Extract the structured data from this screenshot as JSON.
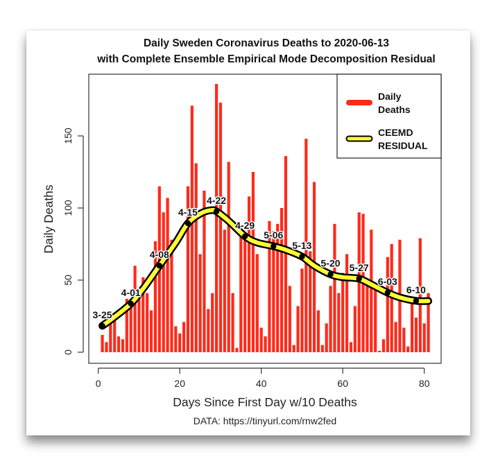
{
  "chart_data": {
    "type": "bar",
    "title": "Daily Sweden Coronavirus Deaths to 2020-06-13",
    "subtitle": "with Complete Ensemble Empirical Mode Decomposition Residual",
    "xlabel": "Days Since First Day w/10 Deaths",
    "ylabel": "Daily Deaths",
    "note": "DATA: https://tinyurl.com/rnw2fed",
    "xlim": [
      -1,
      84
    ],
    "ylim": [
      0,
      190
    ],
    "xticks": [
      0,
      20,
      40,
      60,
      80
    ],
    "xtick_labels": [
      "0",
      "20",
      "40",
      "60",
      "80"
    ],
    "yticks": [
      0,
      50,
      100,
      150
    ],
    "ytick_labels": [
      "0",
      "50",
      "100",
      "150"
    ],
    "grid": false,
    "legend_position": "top-right",
    "series": [
      {
        "name": "Daily Deaths",
        "legend_label": [
          "Daily",
          "Deaths"
        ],
        "kind": "bar",
        "color": "#ff2a1a",
        "x": [
          1,
          2,
          3,
          4,
          5,
          6,
          7,
          8,
          9,
          10,
          11,
          12,
          13,
          14,
          15,
          16,
          17,
          18,
          19,
          20,
          21,
          22,
          23,
          24,
          25,
          26,
          27,
          28,
          29,
          30,
          31,
          32,
          33,
          34,
          35,
          36,
          37,
          38,
          39,
          40,
          41,
          42,
          43,
          44,
          45,
          46,
          47,
          48,
          49,
          50,
          51,
          52,
          53,
          54,
          55,
          56,
          57,
          58,
          59,
          60,
          61,
          62,
          63,
          64,
          65,
          66,
          67,
          68,
          69,
          70,
          71,
          72,
          73,
          74,
          75,
          76,
          77,
          78,
          79,
          80,
          81
        ],
        "values": [
          12,
          7,
          20,
          22,
          11,
          9,
          37,
          36,
          60,
          41,
          52,
          41,
          29,
          77,
          115,
          97,
          107,
          78,
          18,
          13,
          21,
          115,
          171,
          131,
          68,
          112,
          30,
          41,
          186,
          173,
          85,
          132,
          41,
          3,
          80,
          80,
          108,
          125,
          68,
          17,
          11,
          91,
          84,
          89,
          100,
          136,
          46,
          5,
          32,
          58,
          148,
          70,
          118,
          29,
          5,
          20,
          46,
          89,
          41,
          55,
          68,
          7,
          32,
          97,
          96,
          48,
          85,
          45,
          1,
          9,
          66,
          75,
          21,
          78,
          17,
          4,
          35,
          24,
          79,
          20,
          41
        ]
      },
      {
        "name": "CEEMD Residual",
        "legend_label": [
          "CEEMD",
          "RESIDUAL"
        ],
        "kind": "line",
        "color": "#ffff33",
        "outline_color": "#000000",
        "x": [
          1,
          4,
          8,
          11,
          15,
          19,
          22,
          25,
          27.5,
          29,
          32,
          36,
          39,
          43,
          46,
          50,
          53,
          57,
          60,
          64,
          67,
          71,
          74,
          78,
          81
        ],
        "values": [
          18.3,
          24.5,
          33.7,
          44,
          60,
          76,
          89.4,
          96,
          98.4,
          97.6,
          91,
          80.4,
          76,
          73.5,
          71,
          66.3,
          60,
          54,
          52,
          51,
          47,
          41.3,
          38,
          35.6,
          35.5
        ]
      }
    ],
    "annotations": [
      {
        "label": "3-25",
        "x": 1,
        "y": 18.3
      },
      {
        "label": "4-01",
        "x": 8,
        "y": 33.7
      },
      {
        "label": "4-08",
        "x": 15,
        "y": 60
      },
      {
        "label": "4-15",
        "x": 22,
        "y": 89.4
      },
      {
        "label": "4-22",
        "x": 29,
        "y": 97.6
      },
      {
        "label": "4-29",
        "x": 36,
        "y": 80.4
      },
      {
        "label": "5-06",
        "x": 43,
        "y": 73.5
      },
      {
        "label": "5-13",
        "x": 50,
        "y": 66.3
      },
      {
        "label": "5-20",
        "x": 57,
        "y": 54
      },
      {
        "label": "5-27",
        "x": 64,
        "y": 51
      },
      {
        "label": "6-03",
        "x": 71,
        "y": 41.3
      },
      {
        "label": "6-10",
        "x": 78,
        "y": 35.6
      }
    ]
  }
}
